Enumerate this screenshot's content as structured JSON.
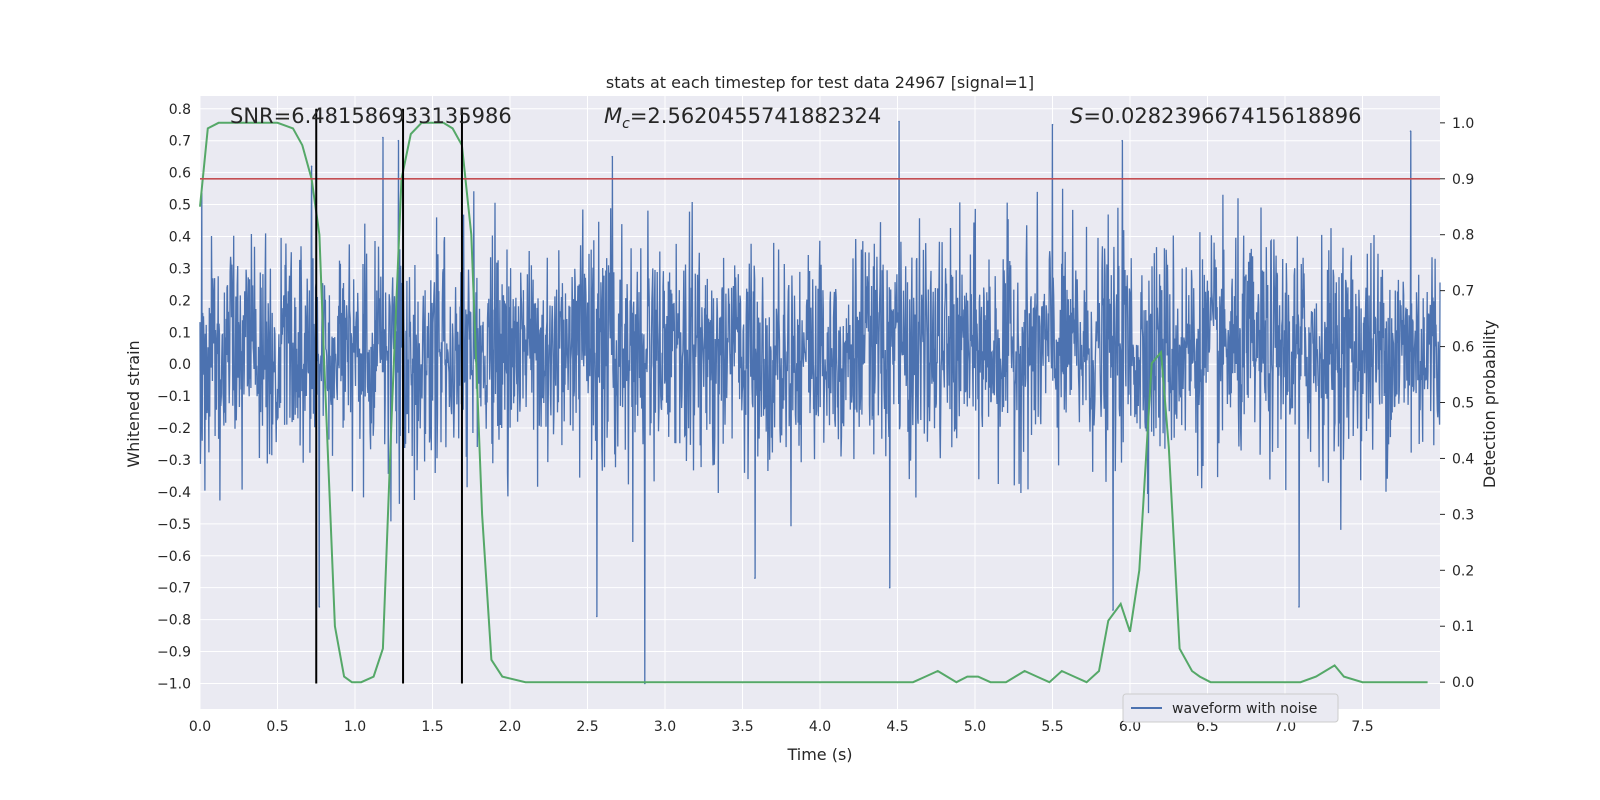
{
  "chart_data": {
    "type": "line",
    "title": "stats at each timestep for test data 24967 [signal=1]",
    "xlabel": "Time (s)",
    "ylabel": "Whitened strain",
    "y2label": "Detection probability",
    "xlim": [
      0.0,
      8.0
    ],
    "ylim": [
      -1.08,
      0.84
    ],
    "y2lim": [
      -0.048,
      1.048
    ],
    "x_ticks": [
      "0.0",
      "0.5",
      "1.0",
      "1.5",
      "2.0",
      "2.5",
      "3.0",
      "3.5",
      "4.0",
      "4.5",
      "5.0",
      "5.5",
      "6.0",
      "6.5",
      "7.0",
      "7.5"
    ],
    "y_ticks": [
      "0.8",
      "0.7",
      "0.6",
      "0.5",
      "0.4",
      "0.3",
      "0.2",
      "0.1",
      "0.0",
      "−0.1",
      "−0.2",
      "−0.3",
      "−0.4",
      "−0.5",
      "−0.6",
      "−0.7",
      "−0.8",
      "−0.9",
      "−1.0"
    ],
    "y2_ticks": [
      "1.0",
      "0.9",
      "0.8",
      "0.7",
      "0.6",
      "0.5",
      "0.4",
      "0.3",
      "0.2",
      "0.1",
      "0.0"
    ],
    "grid": true,
    "legend": {
      "placement": "bottom-right",
      "entries": [
        "waveform with noise"
      ]
    },
    "annotations": {
      "snr": "SNR=6.481586933135986",
      "mc_symbol": "M",
      "mc_sub": "c",
      "mc_value": "=2.5620455741882324",
      "s_symbol": "S",
      "s_value": "=0.028239667415618896"
    },
    "threshold": {
      "y2": 0.9,
      "color": "#c44e52"
    },
    "vlines_x": [
      0.75,
      1.31,
      1.69
    ],
    "vline_ymin": -1.0,
    "vline_ymax": 0.8,
    "series": [
      {
        "name": "waveform with noise",
        "color": "#4c72b0",
        "axis": "left",
        "x_start": 0.0,
        "x_end": 8.0,
        "n_points": 2800,
        "envelope_typical": [
          -0.25,
          0.3
        ],
        "peaks": [
          {
            "x": 0.72,
            "y": 0.62
          },
          {
            "x": 0.77,
            "y": -0.76
          },
          {
            "x": 1.18,
            "y": 0.71
          },
          {
            "x": 1.28,
            "y": 0.7
          },
          {
            "x": 1.69,
            "y": 0.66
          },
          {
            "x": 2.56,
            "y": -0.79
          },
          {
            "x": 2.66,
            "y": 0.65
          },
          {
            "x": 2.87,
            "y": -1.0
          },
          {
            "x": 3.58,
            "y": -0.67
          },
          {
            "x": 4.45,
            "y": -0.7
          },
          {
            "x": 4.51,
            "y": 0.76
          },
          {
            "x": 5.5,
            "y": 0.75
          },
          {
            "x": 5.89,
            "y": -0.77
          },
          {
            "x": 5.95,
            "y": 0.7
          },
          {
            "x": 7.09,
            "y": -0.76
          },
          {
            "x": 7.81,
            "y": 0.73
          }
        ]
      },
      {
        "name": "Detection probability",
        "color": "#55a868",
        "axis": "right",
        "x": [
          0.0,
          0.05,
          0.12,
          0.2,
          0.3,
          0.4,
          0.5,
          0.6,
          0.66,
          0.72,
          0.77,
          0.8,
          0.87,
          0.93,
          0.98,
          1.04,
          1.12,
          1.18,
          1.24,
          1.3,
          1.36,
          1.43,
          1.5,
          1.57,
          1.63,
          1.69,
          1.75,
          1.82,
          1.88,
          1.95,
          2.1,
          2.3,
          2.5,
          2.7,
          2.8,
          2.9,
          3.0,
          3.2,
          3.4,
          3.6,
          3.8,
          4.0,
          4.2,
          4.4,
          4.6,
          4.68,
          4.76,
          4.82,
          4.88,
          4.95,
          5.02,
          5.1,
          5.2,
          5.32,
          5.4,
          5.48,
          5.56,
          5.64,
          5.72,
          5.8,
          5.86,
          5.94,
          6.0,
          6.06,
          6.14,
          6.2,
          6.25,
          6.32,
          6.4,
          6.45,
          6.52,
          6.6,
          6.8,
          7.0,
          7.1,
          7.2,
          7.26,
          7.32,
          7.38,
          7.5,
          7.7,
          7.92
        ],
        "values": [
          0.85,
          0.99,
          1.0,
          1.0,
          1.0,
          1.0,
          1.0,
          0.99,
          0.96,
          0.9,
          0.8,
          0.58,
          0.1,
          0.01,
          0.0,
          0.0,
          0.01,
          0.06,
          0.5,
          0.9,
          0.98,
          1.0,
          1.0,
          1.0,
          0.99,
          0.96,
          0.8,
          0.3,
          0.04,
          0.01,
          0.0,
          0.0,
          0.0,
          0.0,
          0.0,
          0.0,
          0.0,
          0.0,
          0.0,
          0.0,
          0.0,
          0.0,
          0.0,
          0.0,
          0.0,
          0.01,
          0.02,
          0.01,
          0.0,
          0.01,
          0.01,
          0.0,
          0.0,
          0.02,
          0.01,
          0.0,
          0.02,
          0.01,
          0.0,
          0.02,
          0.11,
          0.14,
          0.09,
          0.2,
          0.57,
          0.59,
          0.42,
          0.06,
          0.02,
          0.01,
          0.0,
          0.0,
          0.0,
          0.0,
          0.0,
          0.01,
          0.02,
          0.03,
          0.01,
          0.0,
          0.0,
          0.0
        ]
      }
    ]
  }
}
